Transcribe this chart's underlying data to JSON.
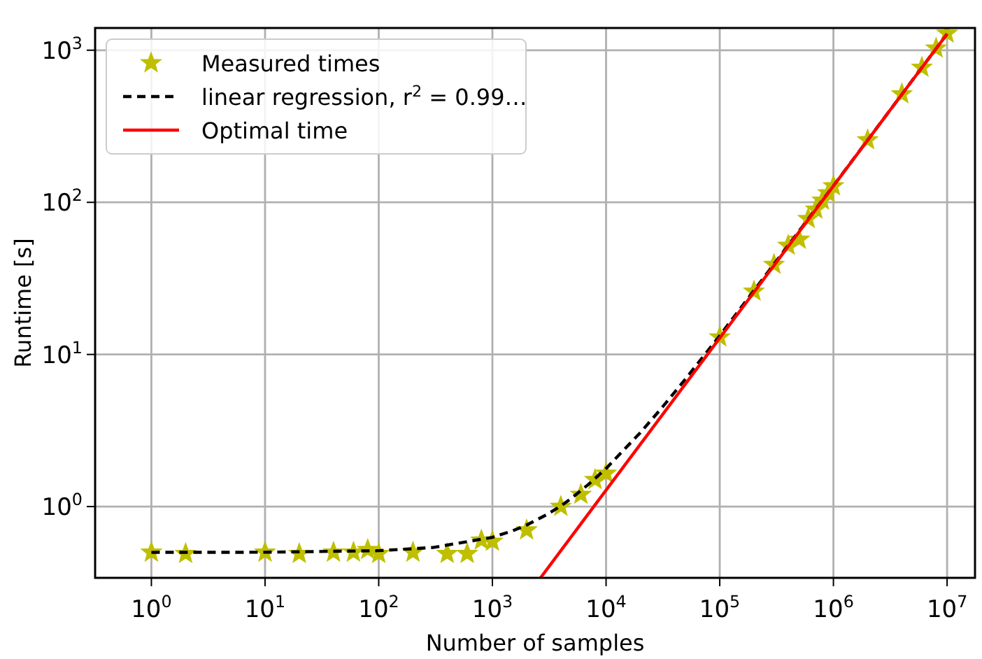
{
  "chart_data": {
    "type": "line",
    "xlabel": "Number of samples",
    "ylabel": "Runtime [s]",
    "log": "xy",
    "grid": true,
    "legend": "top left",
    "xlim": [
      0.32,
      17600000
    ],
    "ylim": [
      0.34,
      1400
    ],
    "xticks": [
      {
        "value": 1,
        "label": "10$^{0}$"
      },
      {
        "value": 10,
        "label": "10$^{1}$"
      },
      {
        "value": 100,
        "label": "10$^{2}$"
      },
      {
        "value": 1000,
        "label": "10$^{3}$"
      },
      {
        "value": 10000,
        "label": "10$^{4}$"
      },
      {
        "value": 100000,
        "label": "10$^{5}$"
      },
      {
        "value": 1000000,
        "label": "10$^{6}$"
      },
      {
        "value": 10000000,
        "label": "10$^{7}$"
      }
    ],
    "yticks": [
      {
        "value": 1,
        "label": "10$^{0}$"
      },
      {
        "value": 10,
        "label": "10$^{1}$"
      },
      {
        "value": 100,
        "label": "10$^{2}$"
      },
      {
        "value": 1000,
        "label": "10$^{3}$"
      }
    ],
    "series": [
      {
        "name": "Measured times",
        "type": "scatter",
        "marker": "star",
        "color": "#bfbf00",
        "x": [
          1,
          2,
          10,
          20,
          40,
          60,
          80,
          100,
          200,
          400,
          600,
          800,
          1000,
          2000,
          4000,
          6000,
          8000,
          10000,
          100000,
          200000,
          300000,
          400000,
          500000,
          600000,
          700000,
          800000,
          900000,
          1000000,
          2000000,
          4000000,
          6000000,
          8000000,
          10000000
        ],
        "values": [
          0.5,
          0.49,
          0.5,
          0.49,
          0.5,
          0.5,
          0.52,
          0.49,
          0.5,
          0.49,
          0.49,
          0.6,
          0.59,
          0.7,
          1.0,
          1.2,
          1.5,
          1.65,
          13,
          26,
          39,
          52,
          57,
          78,
          90,
          103,
          115,
          128,
          257,
          515,
          770,
          1030,
          1290
        ]
      },
      {
        "name": "linear regression, r$^{2}$ = 0.99…",
        "line_style": "dashed",
        "color": "#000000",
        "x": [
          1,
          10,
          100,
          300,
          1000,
          1500,
          2000,
          3000,
          4000,
          5000,
          7000,
          10000,
          20000,
          30000,
          50000,
          100000,
          1000000,
          10000000
        ],
        "values": [
          0.5,
          0.501,
          0.513,
          0.538,
          0.628,
          0.692,
          0.756,
          0.884,
          1.01,
          1.14,
          1.4,
          1.78,
          3.06,
          4.34,
          6.9,
          13.3,
          128.5,
          1280
        ]
      },
      {
        "name": "Optimal time",
        "line_style": "solid",
        "color": "#ff0000",
        "x": [
          2650,
          10000000
        ],
        "values": [
          0.34,
          1280
        ]
      }
    ]
  }
}
